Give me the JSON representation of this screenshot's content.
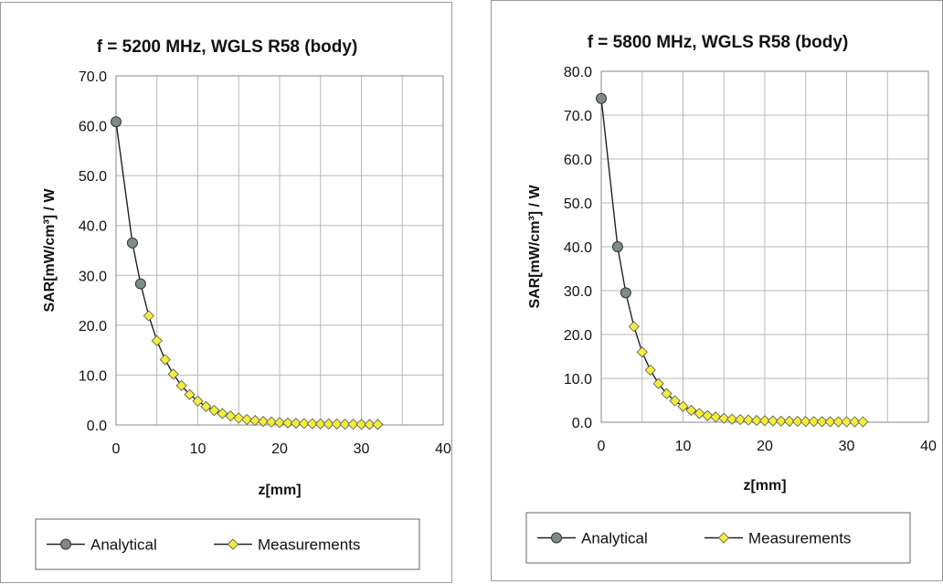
{
  "chart_data": [
    {
      "type": "line",
      "title": "f = 5200 MHz, WGLS R58 (body)",
      "xlabel": "z[mm]",
      "ylabel": "SAR[mW/cm³] / W",
      "xlim": [
        0,
        40
      ],
      "ylim": [
        0,
        70
      ],
      "xticks": [
        "0",
        "10",
        "20",
        "30",
        "40"
      ],
      "yticks": [
        "0.0",
        "10.0",
        "20.0",
        "30.0",
        "40.0",
        "50.0",
        "60.0",
        "70.0"
      ],
      "grid": true,
      "legend_position": "bottom",
      "series": [
        {
          "name": "Analytical",
          "marker": "circle",
          "color": "#7f8c83",
          "x": [
            0,
            2,
            3
          ],
          "y": [
            60.8,
            36.5,
            28.3
          ]
        },
        {
          "name": "Measurements",
          "marker": "diamond",
          "color": "#f3ee3a",
          "x": [
            4,
            5,
            6,
            7,
            8,
            9,
            10,
            11,
            12,
            13,
            14,
            15,
            16,
            17,
            18,
            19,
            20,
            21,
            22,
            23,
            24,
            25,
            26,
            27,
            28,
            29,
            30,
            31,
            32
          ],
          "y": [
            21.9,
            16.9,
            13.1,
            10.2,
            7.9,
            6.1,
            4.8,
            3.7,
            2.9,
            2.3,
            1.8,
            1.4,
            1.1,
            0.9,
            0.7,
            0.6,
            0.5,
            0.4,
            0.35,
            0.3,
            0.25,
            0.22,
            0.2,
            0.18,
            0.16,
            0.14,
            0.12,
            0.1,
            0.1
          ]
        }
      ]
    },
    {
      "type": "line",
      "title": "f = 5800 MHz, WGLS R58 (body)",
      "xlabel": "z[mm]",
      "ylabel": "SAR[mW/cm³] / W",
      "xlim": [
        0,
        40
      ],
      "ylim": [
        0,
        80
      ],
      "xticks": [
        "0",
        "10",
        "20",
        "30",
        "40"
      ],
      "yticks": [
        "0.0",
        "10.0",
        "20.0",
        "30.0",
        "40.0",
        "50.0",
        "60.0",
        "70.0",
        "80.0"
      ],
      "grid": true,
      "legend_position": "bottom",
      "series": [
        {
          "name": "Analytical",
          "marker": "circle",
          "color": "#7f8c83",
          "x": [
            0,
            2,
            3
          ],
          "y": [
            73.8,
            40.0,
            29.5
          ]
        },
        {
          "name": "Measurements",
          "marker": "diamond",
          "color": "#f3ee3a",
          "x": [
            4,
            5,
            6,
            7,
            8,
            9,
            10,
            11,
            12,
            13,
            14,
            15,
            16,
            17,
            18,
            19,
            20,
            21,
            22,
            23,
            24,
            25,
            26,
            27,
            28,
            29,
            30,
            31,
            32
          ],
          "y": [
            21.8,
            16.0,
            11.9,
            8.8,
            6.5,
            4.9,
            3.6,
            2.7,
            2.0,
            1.5,
            1.2,
            0.9,
            0.7,
            0.6,
            0.5,
            0.4,
            0.35,
            0.3,
            0.25,
            0.22,
            0.2,
            0.18,
            0.16,
            0.14,
            0.12,
            0.1,
            0.1,
            0.1,
            0.1
          ]
        }
      ]
    }
  ]
}
